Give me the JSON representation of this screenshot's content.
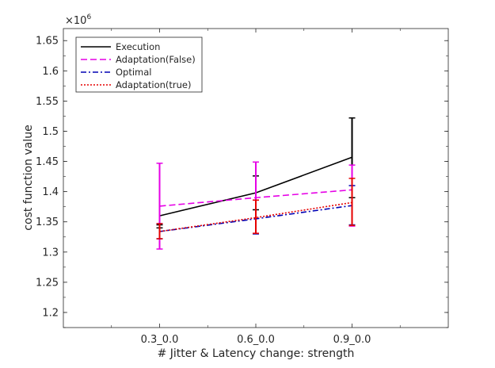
{
  "chart_data": {
    "type": "line",
    "title": "",
    "xlabel": "# Jitter & Latency change: strength",
    "ylabel": "cost function value",
    "y_exponent_label": "×10",
    "y_exponent_power": "6",
    "categories": [
      "0.3_0.0",
      "0.6_0.0",
      "0.9_0.0"
    ],
    "xlim": [
      0,
      4
    ],
    "x": [
      1,
      2,
      3
    ],
    "ylim": [
      1.175,
      1.67
    ],
    "yticks": [
      1.2,
      1.25,
      1.3,
      1.35,
      1.4,
      1.45,
      1.5,
      1.55,
      1.6,
      1.65
    ],
    "ytick_labels": [
      "1.2",
      "1.25",
      "1.3",
      "1.35",
      "1.4",
      "1.45",
      "1.5",
      "1.55",
      "1.6",
      "1.65"
    ],
    "grid": false,
    "legend_position": "top-left",
    "series": [
      {
        "name": "Execution",
        "color": "#000000",
        "dash": "solid",
        "values": [
          1.36,
          1.398,
          1.457
        ],
        "err_low": [
          1.34,
          1.37,
          1.39
        ],
        "err_high": [
          1.345,
          1.426,
          1.522
        ]
      },
      {
        "name": "Adaptation(False)",
        "color": "#e600e6",
        "dash": "dashed",
        "values": [
          1.376,
          1.39,
          1.403
        ],
        "err_low": [
          1.305,
          1.331,
          1.343
        ],
        "err_high": [
          1.447,
          1.449,
          1.444
        ]
      },
      {
        "name": "Optimal",
        "color": "#0000b3",
        "dash": "dashdot",
        "values": [
          1.334,
          1.355,
          1.377
        ],
        "err_low": [
          1.322,
          1.33,
          1.345
        ],
        "err_high": [
          1.347,
          1.386,
          1.41
        ]
      },
      {
        "name": "Adaptation(true)",
        "color": "#e60000",
        "dash": "dotted",
        "values": [
          1.334,
          1.357,
          1.382
        ],
        "err_low": [
          1.322,
          1.331,
          1.344
        ],
        "err_high": [
          1.347,
          1.386,
          1.422
        ]
      }
    ]
  }
}
